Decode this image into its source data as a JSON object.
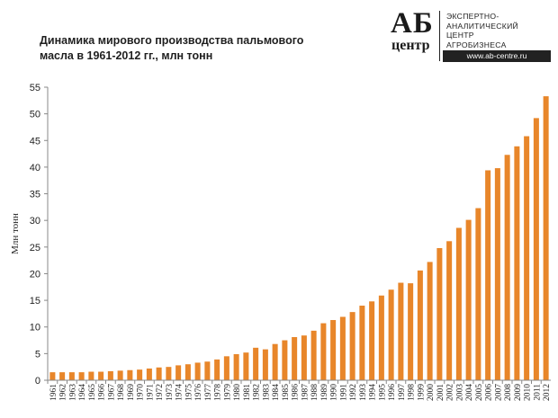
{
  "chart_data": {
    "type": "bar",
    "title": "Динамика мирового производства пальмового масла в 1961-2012 гг., млн тонн",
    "xlabel": "",
    "ylabel": "Млн тонн",
    "ylim": [
      0,
      55
    ],
    "yticks": [
      "0",
      "5",
      "10",
      "15",
      "20",
      "25",
      "30",
      "35",
      "40",
      "45",
      "50",
      "55"
    ],
    "grid": false,
    "bar_color": "#E8862A",
    "categories": [
      "1961",
      "1962",
      "1963",
      "1964",
      "1965",
      "1966",
      "1967",
      "1968",
      "1969",
      "1970",
      "1971",
      "1972",
      "1973",
      "1974",
      "1975",
      "1976",
      "1977",
      "1978",
      "1979",
      "1980",
      "1981",
      "1982",
      "1983",
      "1984",
      "1985",
      "1986",
      "1987",
      "1988",
      "1989",
      "1990",
      "1991",
      "1992",
      "1993",
      "1994",
      "1995",
      "1996",
      "1997",
      "1998",
      "1999",
      "2000",
      "2001",
      "2002",
      "2003",
      "2004",
      "2005",
      "2006",
      "2007",
      "2008",
      "2009",
      "2010",
      "2011",
      "2012"
    ],
    "values": [
      1.5,
      1.5,
      1.5,
      1.5,
      1.6,
      1.6,
      1.7,
      1.8,
      1.9,
      2.0,
      2.2,
      2.4,
      2.5,
      2.8,
      3.0,
      3.3,
      3.5,
      3.9,
      4.5,
      4.9,
      5.2,
      6.1,
      5.8,
      6.8,
      7.5,
      8.1,
      8.4,
      9.3,
      10.7,
      11.3,
      11.9,
      12.8,
      14.0,
      14.8,
      15.9,
      17.0,
      18.3,
      18.2,
      20.6,
      22.2,
      24.8,
      26.1,
      28.6,
      30.1,
      32.3,
      39.4,
      39.8,
      42.3,
      43.9,
      45.8,
      49.2,
      53.3
    ]
  },
  "logo": {
    "mark_top": "АБ",
    "mark_bottom": "центр",
    "text": "ЭКСПЕРТНО-\nАНАЛИТИЧЕСКИЙ\nЦЕНТР\nАГРОБИЗНЕСА",
    "url": "www.ab-centre.ru"
  }
}
